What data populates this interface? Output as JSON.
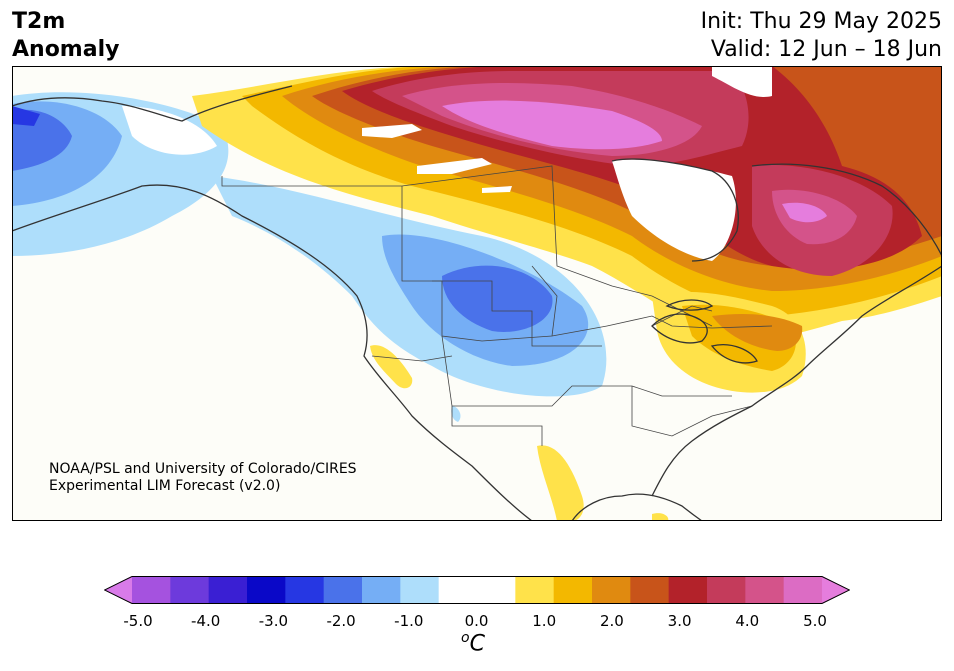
{
  "title": {
    "line1": "T2m",
    "line2": "Anomaly"
  },
  "forecast": {
    "init": "Init: Thu 29 May 2025",
    "valid": "Valid: 12 Jun – 18 Jun"
  },
  "credit": {
    "line1": "NOAA/PSL and University of Colorado/CIRES",
    "line2": "Experimental LIM Forecast (v2.0)"
  },
  "colorbar": {
    "colors": [
      "#d97be9",
      "#a552df",
      "#6d3adc",
      "#3a1fd3",
      "#0a08c8",
      "#2637e3",
      "#4a72ea",
      "#75aef5",
      "#aedefb",
      "#ffffff",
      "#ffffff",
      "#ffe24a",
      "#f3b800",
      "#e08a10",
      "#c8541a",
      "#b3222a",
      "#c43b5b",
      "#d4538a",
      "#dc6cc4",
      "#e57ddd"
    ],
    "ticks": [
      "-5.0",
      "-4.0",
      "-3.0",
      "-2.0",
      "-1.0",
      "0.0",
      "1.0",
      "2.0",
      "3.0",
      "4.0",
      "5.0"
    ],
    "unit_symbol": "C",
    "unit_superscript": "o"
  },
  "map": {
    "region": "North America",
    "projection": "lambert-conformal"
  }
}
